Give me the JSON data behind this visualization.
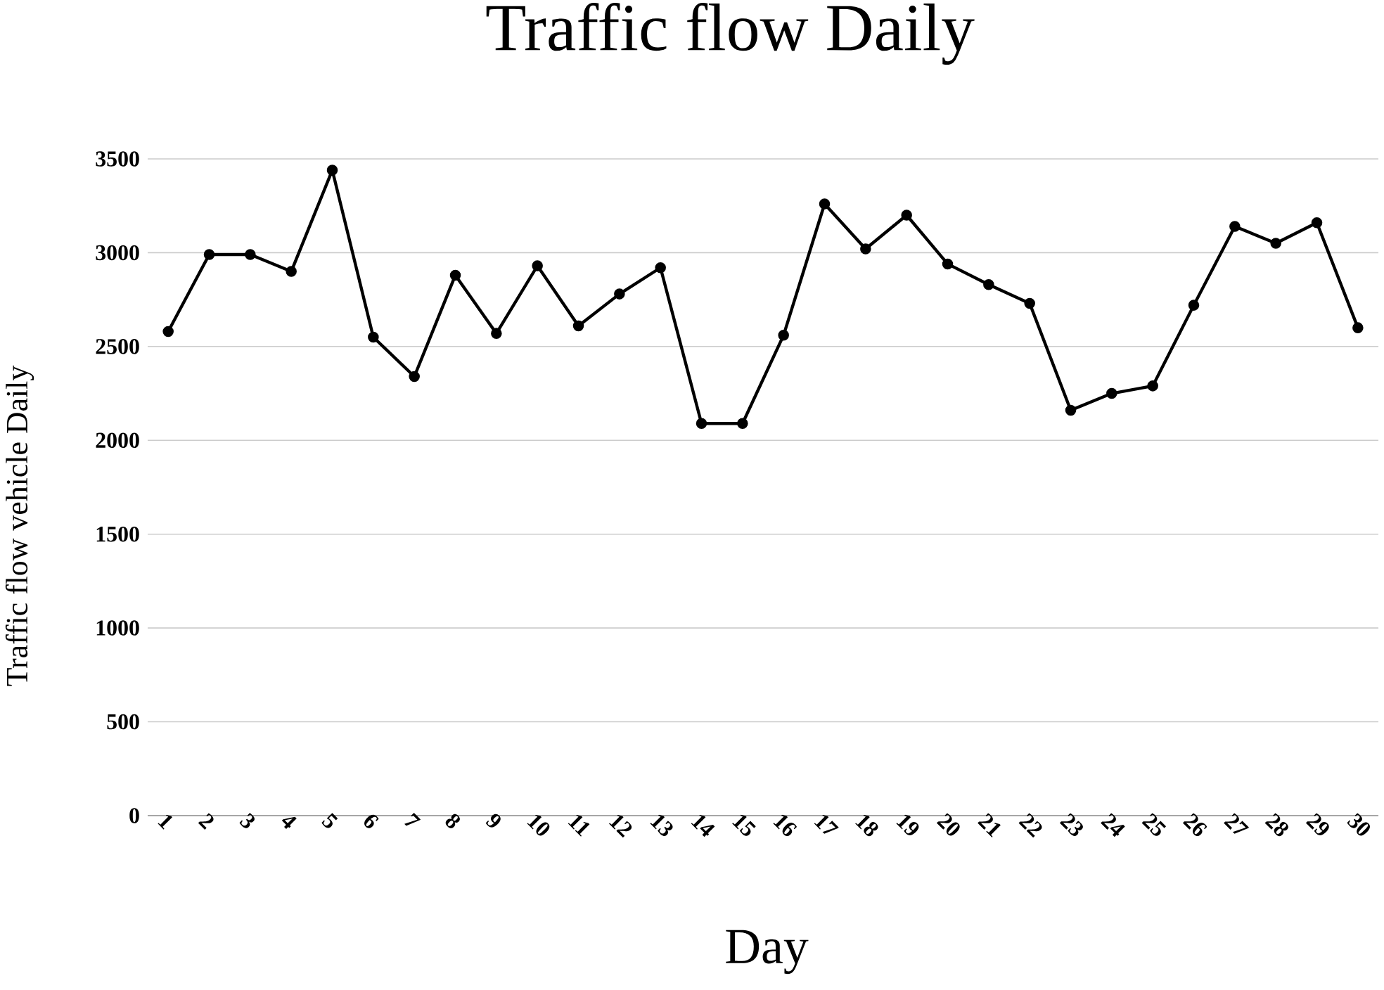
{
  "chart_data": {
    "type": "line",
    "title": "Traffic flow Daily",
    "xlabel": "Day",
    "ylabel": "Traffic flow vehicle Daily",
    "categories": [
      "1",
      "2",
      "3",
      "4",
      "5",
      "6",
      "7",
      "8",
      "9",
      "10",
      "11",
      "12",
      "13",
      "14",
      "15",
      "16",
      "17",
      "18",
      "19",
      "20",
      "21",
      "22",
      "23",
      "24",
      "25",
      "26",
      "27",
      "28",
      "29",
      "30"
    ],
    "series": [
      {
        "color": "#000000",
        "values": [
          2580,
          2990,
          2990,
          2900,
          3440,
          2550,
          2340,
          2880,
          2570,
          2930,
          2610,
          2780,
          2920,
          2090,
          2090,
          2560,
          3260,
          3020,
          3200,
          2940,
          2830,
          2730,
          2160,
          2250,
          2290,
          2720,
          3140,
          3050,
          3160,
          2600
        ]
      }
    ],
    "ylim": [
      0,
      3500
    ],
    "yticks": [
      0,
      500,
      1000,
      1500,
      2000,
      2500,
      3000,
      3500
    ],
    "grid": "y",
    "marker": "circle",
    "line_style": "solid"
  }
}
